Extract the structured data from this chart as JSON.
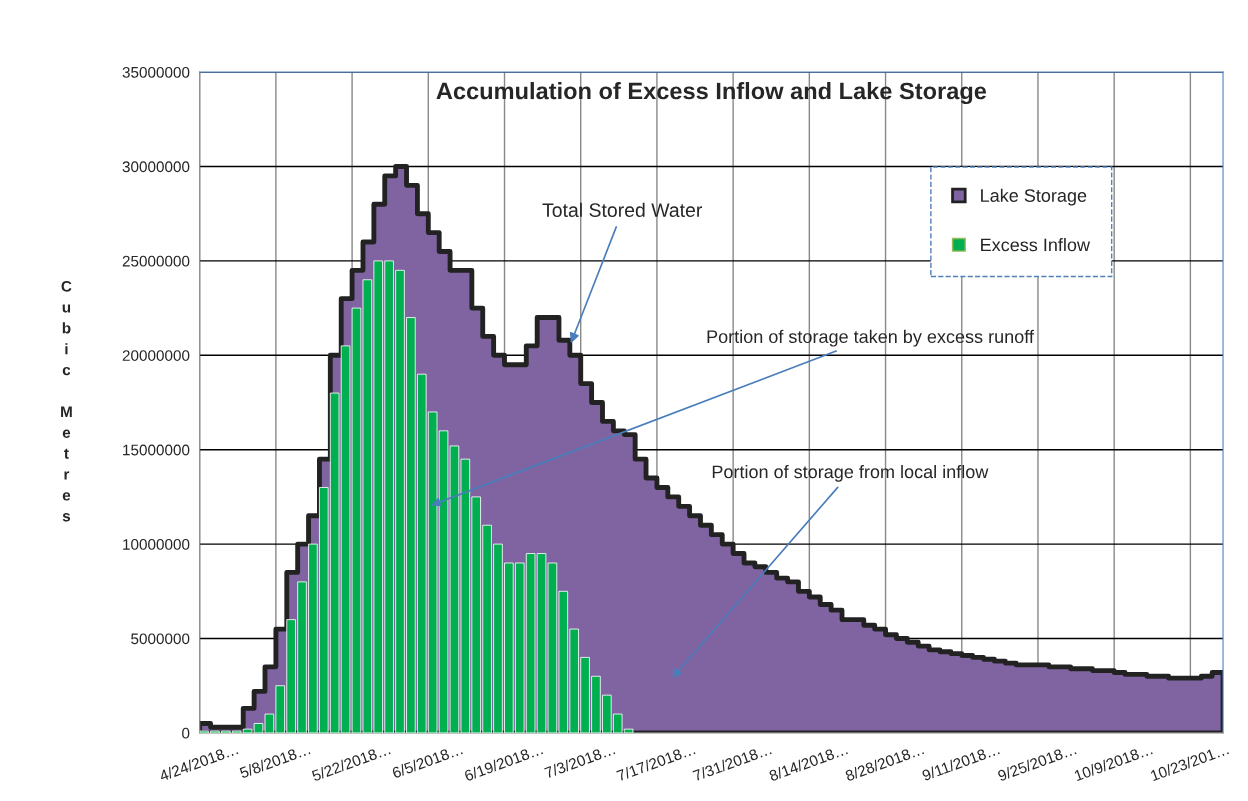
{
  "chart_data": {
    "type": "area",
    "title": "Accumulation of Excess Inflow and Lake Storage",
    "ylabel": "Cubic Metres",
    "x": [
      "2018-04-24",
      "2018-04-26",
      "2018-04-28",
      "2018-04-30",
      "2018-05-02",
      "2018-05-04",
      "2018-05-06",
      "2018-05-08",
      "2018-05-10",
      "2018-05-12",
      "2018-05-14",
      "2018-05-16",
      "2018-05-18",
      "2018-05-20",
      "2018-05-22",
      "2018-05-24",
      "2018-05-26",
      "2018-05-28",
      "2018-05-30",
      "2018-06-01",
      "2018-06-03",
      "2018-06-05",
      "2018-06-07",
      "2018-06-09",
      "2018-06-11",
      "2018-06-13",
      "2018-06-15",
      "2018-06-17",
      "2018-06-19",
      "2018-06-21",
      "2018-06-23",
      "2018-06-25",
      "2018-06-27",
      "2018-06-29",
      "2018-07-01",
      "2018-07-03",
      "2018-07-05",
      "2018-07-07",
      "2018-07-09",
      "2018-07-11",
      "2018-07-13",
      "2018-07-15",
      "2018-07-17",
      "2018-07-19",
      "2018-07-21",
      "2018-07-23",
      "2018-07-25",
      "2018-07-27",
      "2018-07-29",
      "2018-07-31",
      "2018-08-02",
      "2018-08-04",
      "2018-08-06",
      "2018-08-08",
      "2018-08-10",
      "2018-08-12",
      "2018-08-14",
      "2018-08-16",
      "2018-08-18",
      "2018-08-20",
      "2018-08-22",
      "2018-08-24",
      "2018-08-26",
      "2018-08-28",
      "2018-08-30",
      "2018-09-01",
      "2018-09-03",
      "2018-09-05",
      "2018-09-07",
      "2018-09-09",
      "2018-09-11",
      "2018-09-13",
      "2018-09-15",
      "2018-09-17",
      "2018-09-19",
      "2018-09-21",
      "2018-09-23",
      "2018-09-25",
      "2018-09-27",
      "2018-09-29",
      "2018-10-01",
      "2018-10-03",
      "2018-10-05",
      "2018-10-07",
      "2018-10-09",
      "2018-10-11",
      "2018-10-13",
      "2018-10-15",
      "2018-10-17",
      "2018-10-19",
      "2018-10-21",
      "2018-10-23",
      "2018-10-25",
      "2018-10-27",
      "2018-10-29"
    ],
    "series": [
      {
        "name": "Lake Storage",
        "color": "#8064a2",
        "values": [
          500000,
          300000,
          300000,
          300000,
          1300000,
          2200000,
          3500000,
          5500000,
          8500000,
          10000000,
          11500000,
          14500000,
          20000000,
          23000000,
          24500000,
          26000000,
          28000000,
          29500000,
          30000000,
          29000000,
          27500000,
          26500000,
          25500000,
          24500000,
          24500000,
          22500000,
          21000000,
          20000000,
          19500000,
          19500000,
          20500000,
          22000000,
          22000000,
          20800000,
          20000000,
          18500000,
          17500000,
          16500000,
          16000000,
          15800000,
          14500000,
          13500000,
          13000000,
          12500000,
          12000000,
          11500000,
          11000000,
          10500000,
          10000000,
          9500000,
          9000000,
          8800000,
          8500000,
          8200000,
          8000000,
          7500000,
          7200000,
          6800000,
          6500000,
          6000000,
          6000000,
          5700000,
          5500000,
          5200000,
          5000000,
          4800000,
          4600000,
          4400000,
          4300000,
          4200000,
          4100000,
          4000000,
          3900000,
          3800000,
          3700000,
          3600000,
          3600000,
          3600000,
          3500000,
          3500000,
          3400000,
          3400000,
          3300000,
          3300000,
          3200000,
          3100000,
          3100000,
          3000000,
          3000000,
          2900000,
          2900000,
          2900000,
          3000000,
          3200000,
          2500000
        ]
      },
      {
        "name": "Excess Inflow",
        "type": "bar",
        "color": "#00b050",
        "values": [
          100000,
          100000,
          100000,
          100000,
          200000,
          500000,
          1000000,
          2500000,
          6000000,
          8000000,
          10000000,
          13000000,
          18000000,
          20500000,
          22500000,
          24000000,
          25000000,
          25000000,
          24500000,
          22000000,
          19000000,
          17000000,
          16000000,
          15200000,
          14500000,
          12500000,
          11000000,
          10000000,
          9000000,
          9000000,
          9500000,
          9500000,
          9000000,
          7500000,
          5500000,
          4000000,
          3000000,
          2000000,
          1000000,
          200000,
          null,
          null,
          null,
          null,
          null,
          null,
          null,
          null,
          null,
          null,
          null,
          null,
          null,
          null,
          null,
          null,
          null,
          null,
          null,
          null,
          null,
          null,
          null,
          null,
          null,
          null,
          null,
          null,
          null,
          null,
          null,
          null,
          null,
          null,
          null,
          null,
          null,
          null,
          null,
          null,
          null,
          null,
          null,
          null,
          null,
          null,
          null,
          null,
          null,
          null,
          null,
          null,
          null,
          null,
          null
        ]
      }
    ],
    "xlim": [
      "2018-04-24",
      "2018-10-29"
    ],
    "xticks": [
      {
        "value": "2018-04-24",
        "label": "4/24/2018…"
      },
      {
        "value": "2018-05-08",
        "label": "5/8/2018…"
      },
      {
        "value": "2018-05-22",
        "label": "5/22/2018…"
      },
      {
        "value": "2018-06-05",
        "label": "6/5/2018…"
      },
      {
        "value": "2018-06-19",
        "label": "6/19/2018…"
      },
      {
        "value": "2018-07-03",
        "label": "7/3/2018…"
      },
      {
        "value": "2018-07-17",
        "label": "7/17/2018…"
      },
      {
        "value": "2018-07-31",
        "label": "7/31/2018…"
      },
      {
        "value": "2018-08-14",
        "label": "8/14/2018…"
      },
      {
        "value": "2018-08-28",
        "label": "8/28/2018…"
      },
      {
        "value": "2018-09-11",
        "label": "9/11/2018…"
      },
      {
        "value": "2018-09-25",
        "label": "9/25/2018…"
      },
      {
        "value": "2018-10-09",
        "label": "10/9/2018…"
      },
      {
        "value": "2018-10-23",
        "label": "10/23/201…"
      }
    ],
    "ylim": [
      0,
      35000000
    ],
    "yticks": [
      0,
      5000000,
      10000000,
      15000000,
      20000000,
      25000000,
      30000000,
      35000000
    ],
    "grid": true,
    "legend": "top right",
    "annotations": [
      {
        "text": "Total Stored Water",
        "x": "2018-07-01",
        "y": 20500000
      },
      {
        "text": "Portion of storage taken by excess runoff",
        "x": "2018-06-05",
        "y": 12000000
      },
      "Portion of storage from local inflow"
    ]
  }
}
